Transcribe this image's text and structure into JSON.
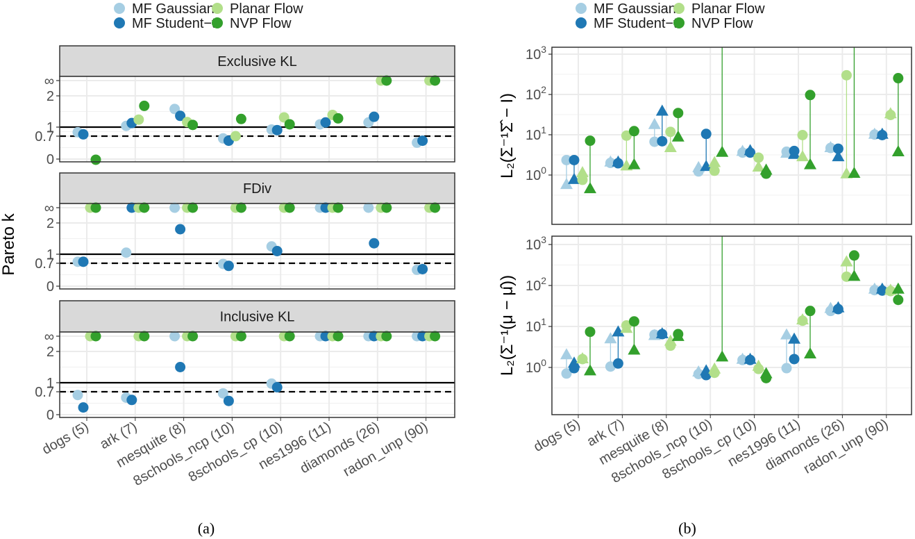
{
  "chart_data": [
    {
      "type": "scatter",
      "id": "a",
      "caption": "(a)",
      "ylabel": "Pareto k",
      "y_ticks": [
        "∞",
        "2",
        "1",
        "0.7",
        "0"
      ],
      "reference_lines": [
        {
          "value": 1,
          "style": "solid"
        },
        {
          "value": 0.7,
          "style": "dashed"
        }
      ],
      "categories": [
        "dogs (5)",
        "ark (7)",
        "mesquite (8)",
        "8schools_ncp (10)",
        "8schools_cp (10)",
        "nes1996 (11)",
        "diamonds (26)",
        "radon_unp (90)"
      ],
      "series_names": [
        "MF Gaussian",
        "MF Student−t",
        "Planar Flow",
        "NVP Flow"
      ],
      "panels": [
        {
          "title": "Exclusive KL",
          "values": [
            [
              0.83,
              1.04,
              1.58,
              0.63,
              0.92,
              1.09,
              1.15,
              0.5
            ],
            [
              0.76,
              1.13,
              1.36,
              0.56,
              0.9,
              1.15,
              1.33,
              0.56
            ],
            [
              null,
              1.24,
              1.16,
              0.7,
              1.31,
              1.39,
              "Inf",
              "Inf"
            ],
            [
              -0.02,
              1.68,
              1.07,
              1.26,
              1.09,
              1.28,
              "Inf",
              "Inf"
            ]
          ]
        },
        {
          "title": "FDiv",
          "values": [
            [
              0.75,
              1.05,
              "Inf",
              0.68,
              1.25,
              "Inf",
              "Inf",
              0.5
            ],
            [
              0.75,
              "Inf",
              1.8,
              0.62,
              1.1,
              "Inf",
              1.35,
              0.52
            ],
            [
              "Inf",
              "Inf",
              "Inf",
              "Inf",
              "Inf",
              "Inf",
              "Inf",
              "Inf"
            ],
            [
              "Inf",
              "Inf",
              "Inf",
              "Inf",
              "Inf",
              "Inf",
              "Inf",
              "Inf"
            ]
          ]
        },
        {
          "title": "Inclusive KL",
          "values": [
            [
              0.6,
              0.52,
              "Inf",
              0.65,
              0.97,
              "Inf",
              "Inf",
              "Inf"
            ],
            [
              0.22,
              0.45,
              1.5,
              0.42,
              0.85,
              "Inf",
              "Inf",
              "Inf"
            ],
            [
              "Inf",
              "Inf",
              "Inf",
              "Inf",
              "Inf",
              "Inf",
              "Inf",
              "Inf"
            ],
            [
              "Inf",
              "Inf",
              "Inf",
              "Inf",
              "Inf",
              "Inf",
              "Inf",
              "Inf"
            ]
          ]
        }
      ]
    },
    {
      "type": "scatter",
      "id": "b",
      "caption": "(b)",
      "yscale": "log10",
      "y_ticks": [
        "0",
        "1",
        "2",
        "3"
      ],
      "categories": [
        "dogs (5)",
        "ark (7)",
        "mesquite (8)",
        "8schools_ncp (10)",
        "8schools_cp (10)",
        "nes1996 (11)",
        "diamonds (26)",
        "radon_unp (90)"
      ],
      "series_names": [
        "MF Gaussian",
        "MF Student−t",
        "Planar Flow",
        "NVP Flow"
      ],
      "marker_meaning": {
        "circle": "estimate 1",
        "triangle": "estimate 2"
      },
      "panels": [
        {
          "ylabel": "L₂(Σ⁻¹Σ̂ − I)",
          "circle": [
            [
              2.35,
              2.0,
              6.7,
              1.23,
              3.6,
              3.8,
              4.7,
              10.1
            ],
            [
              2.35,
              1.96,
              6.9,
              10.5,
              3.6,
              3.95,
              4.5,
              9.8
            ],
            [
              0.76,
              9.5,
              11.8,
              1.28,
              2.7,
              9.8,
              300,
              31
            ],
            [
              7.1,
              12.3,
              34.6,
              "Inf",
              1.08,
              97,
              "Inf",
              254
            ]
          ],
          "triangle": [
            [
              0.57,
              2.06,
              17.6,
              1.5,
              3.8,
              3.4,
              4.7,
              10.1
            ],
            [
              0.76,
              2.06,
              37.8,
              1.6,
              3.95,
              3.2,
              2.8,
              10.1
            ],
            [
              1.12,
              1.65,
              4.7,
              2.0,
              1.55,
              2.8,
              1.05,
              32.5
            ],
            [
              0.45,
              1.77,
              8.6,
              3.6,
              1.3,
              1.77,
              1.08,
              3.7
            ]
          ]
        },
        {
          "ylabel": "L₂(Σ⁻¹(μ − μ̂))",
          "circle": [
            [
              0.71,
              1.05,
              6.3,
              0.69,
              1.52,
              0.96,
              23.9,
              77
            ],
            [
              0.96,
              1.25,
              6.5,
              0.65,
              1.52,
              1.6,
              26.5,
              75
            ],
            [
              1.6,
              10.6,
              3.4,
              0.74,
              0.92,
              13.8,
              164,
              73
            ],
            [
              7.4,
              13.3,
              6.5,
              "Inf",
              0.55,
              23.9,
              540,
              44.5
            ]
          ],
          "triangle": [
            [
              2.0,
              4.9,
              5.9,
              0.76,
              1.55,
              6.1,
              27,
              80
            ],
            [
              1.25,
              7.2,
              6.5,
              0.81,
              1.55,
              4.8,
              28,
              80
            ],
            [
              1.6,
              8.8,
              4.3,
              0.9,
              1.05,
              14.2,
              370,
              75
            ],
            [
              0.81,
              2.6,
              5.6,
              1.77,
              0.69,
              2.1,
              164,
              80
            ]
          ]
        }
      ]
    }
  ],
  "legend": {
    "labels": [
      "MF Gaussian",
      "MF Student−t",
      "Planar Flow",
      "NVP Flow"
    ],
    "colors": [
      "#a6cee3",
      "#1f78b4",
      "#b2df8a",
      "#33a02c"
    ],
    "placement": "top"
  }
}
